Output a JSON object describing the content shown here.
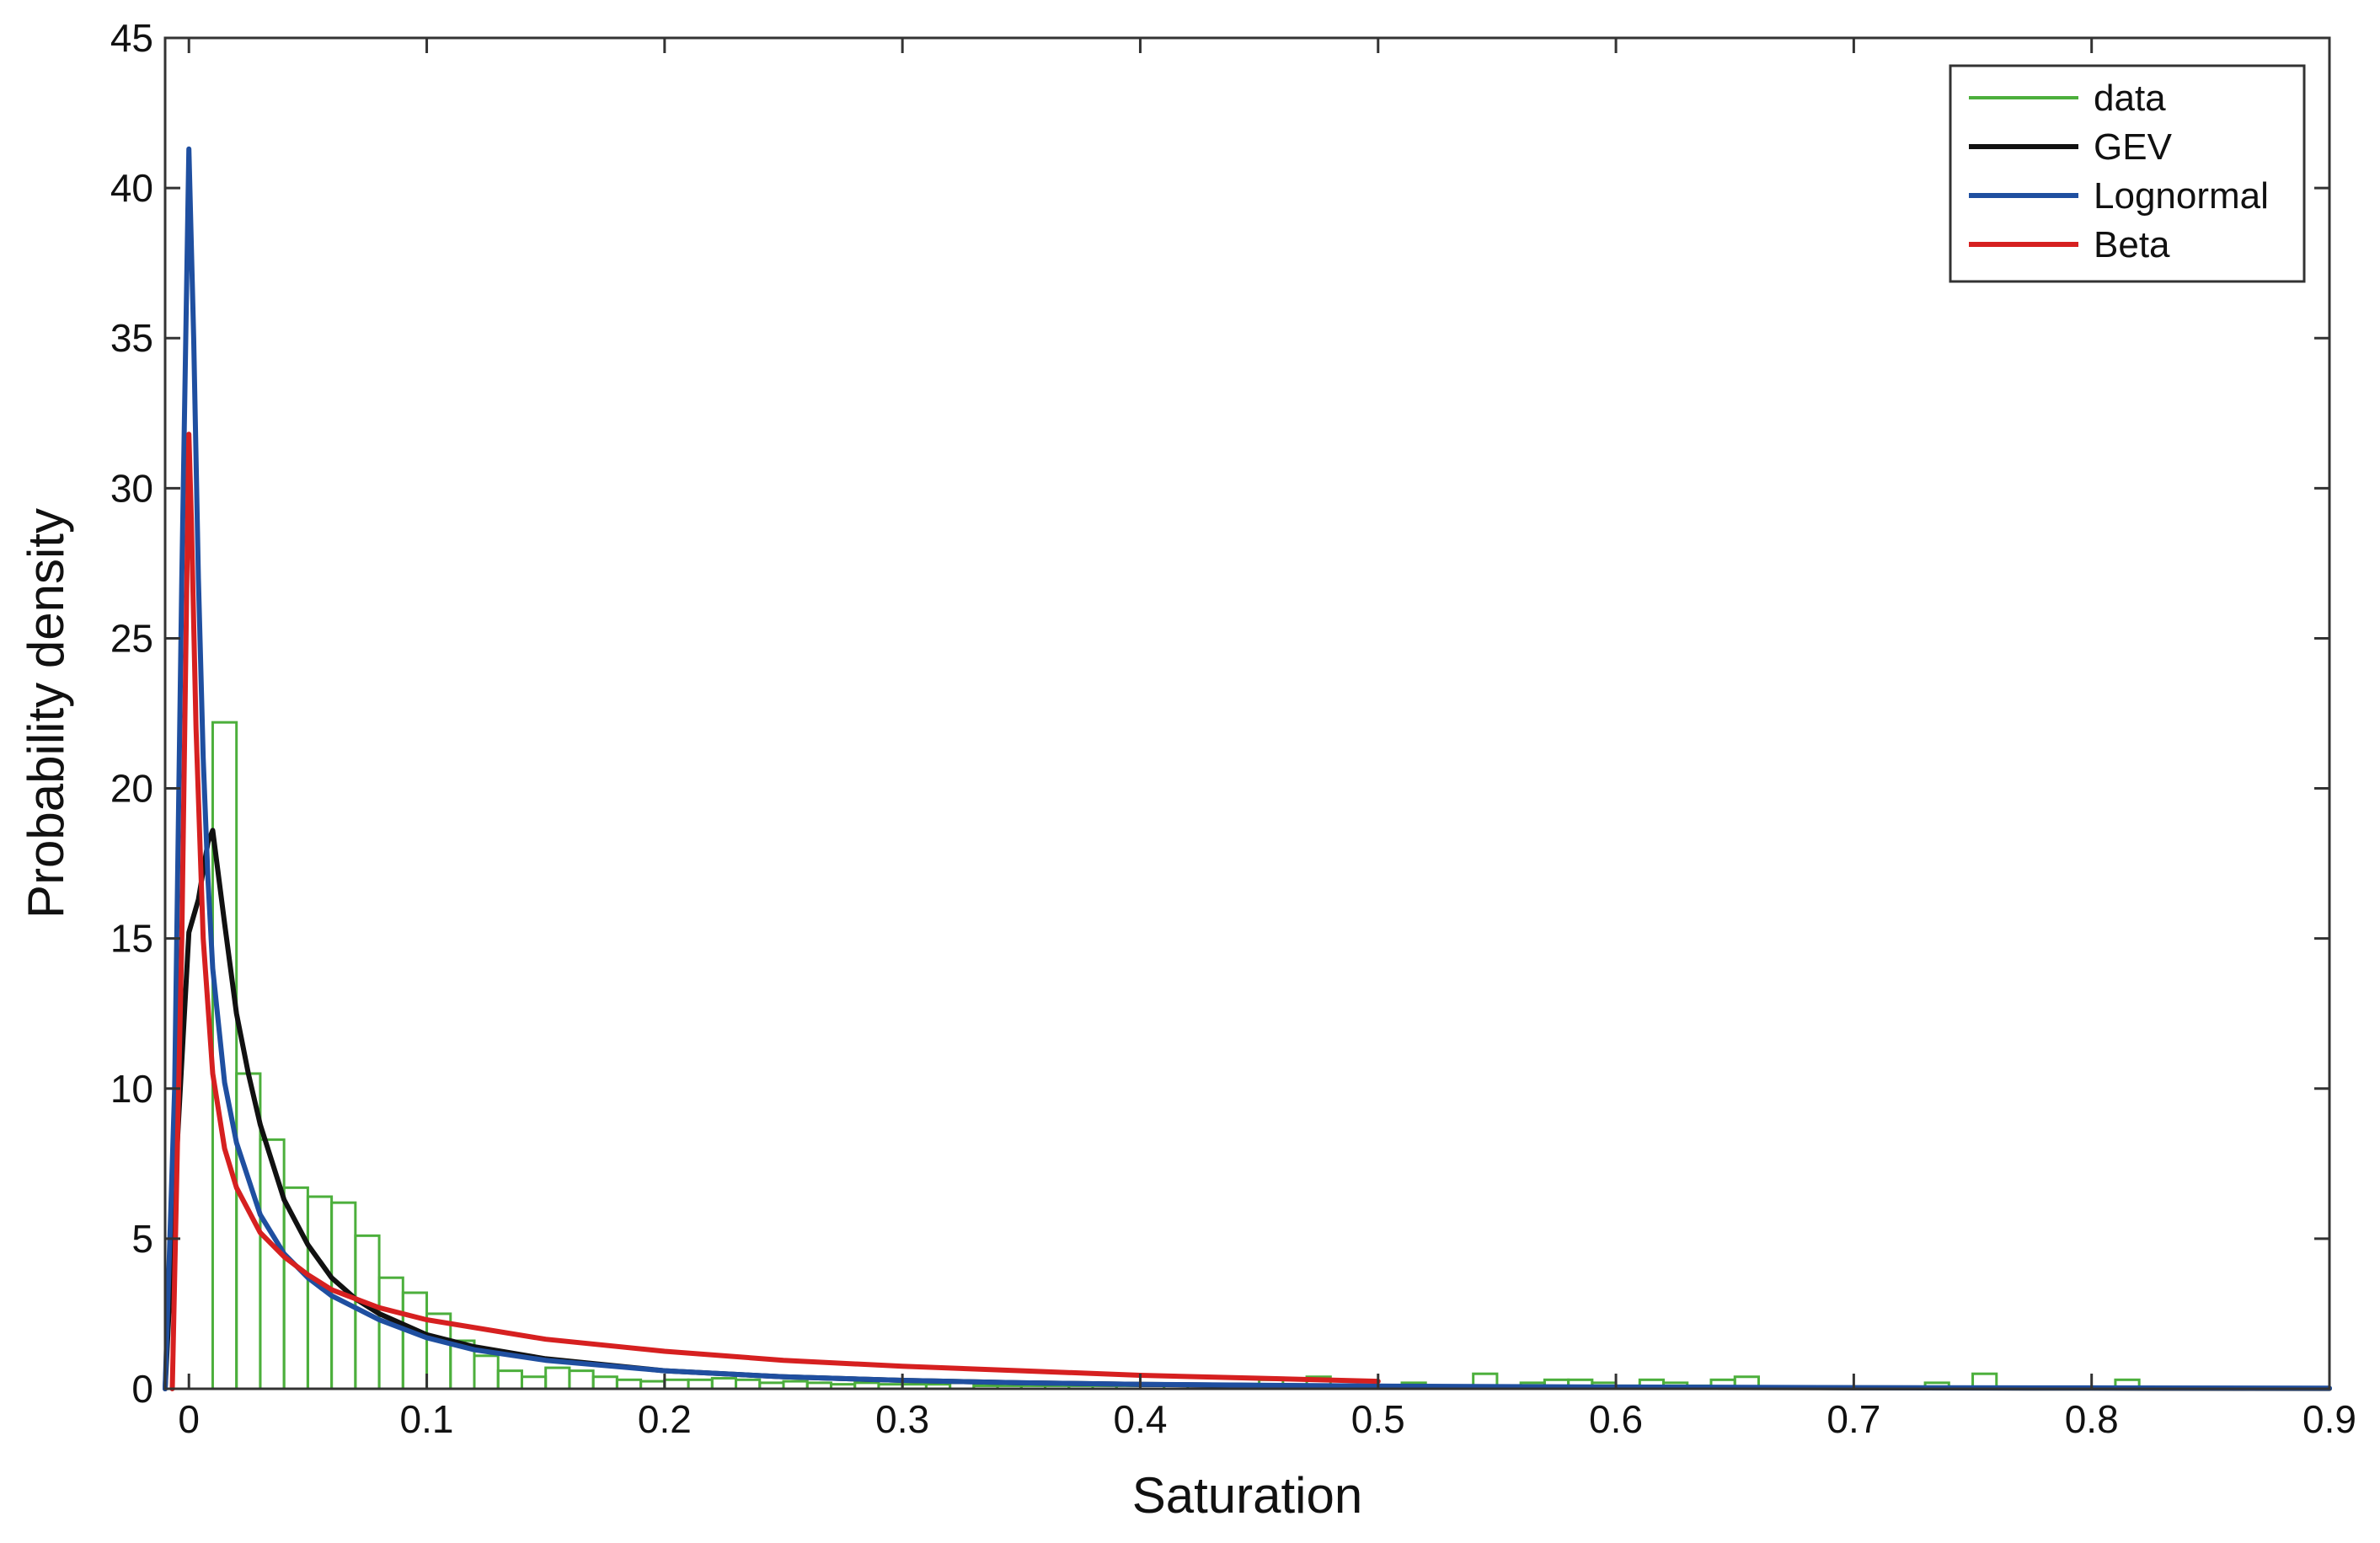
{
  "chart_data": {
    "type": "line",
    "xlabel": "Saturation",
    "ylabel": "Probability density",
    "xlim": [
      -0.01,
      0.9
    ],
    "ylim": [
      0,
      45
    ],
    "xticks": [
      0,
      0.1,
      0.2,
      0.3,
      0.4,
      0.5,
      0.6,
      0.7,
      0.8,
      0.9
    ],
    "xtick_labels": [
      "0",
      "0.1",
      "0.2",
      "0.3",
      "0.4",
      "0.5",
      "0.6",
      "0.7",
      "0.8",
      "0.9"
    ],
    "yticks": [
      0,
      5,
      10,
      15,
      20,
      25,
      30,
      35,
      40,
      45
    ],
    "ytick_labels": [
      "0",
      "5",
      "10",
      "15",
      "20",
      "25",
      "30",
      "35",
      "40",
      "45"
    ],
    "grid": false,
    "legend_position": "top-right",
    "histogram": {
      "name": "data",
      "color": "#4caf3c",
      "bin_width": 0.01,
      "bin_start": 0,
      "values": [
        0,
        22.2,
        10.5,
        8.3,
        6.7,
        6.4,
        6.2,
        5.1,
        3.7,
        3.2,
        2.5,
        1.6,
        1.1,
        0.6,
        0.4,
        0.7,
        0.6,
        0.4,
        0.3,
        0.25,
        0.3,
        0.3,
        0.35,
        0.3,
        0.2,
        0.25,
        0.2,
        0.15,
        0.2,
        0.15,
        0.15,
        0.15,
        0.2,
        0.1,
        0.1,
        0.1,
        0.1,
        0.1,
        0.1,
        0.1,
        0.1,
        0.1,
        0.1,
        0.1,
        0.1,
        0.3,
        0.1,
        0.4,
        0.1,
        0.1,
        0.1,
        0.2,
        0.1,
        0.1,
        0.5,
        0.1,
        0.2,
        0.3,
        0.3,
        0.2,
        0.1,
        0.3,
        0.2,
        0.1,
        0.3,
        0.4,
        0,
        0,
        0,
        0,
        0,
        0,
        0,
        0.2,
        0,
        0.5,
        0,
        0,
        0,
        0,
        0,
        0.3,
        0,
        0,
        0,
        0,
        0,
        0,
        0,
        0
      ]
    },
    "series": [
      {
        "name": "GEV",
        "color": "#111111",
        "x": [
          -0.01,
          -0.005,
          0,
          0.004,
          0.008,
          0.01,
          0.015,
          0.02,
          0.025,
          0.03,
          0.04,
          0.05,
          0.06,
          0.07,
          0.08,
          0.1,
          0.12,
          0.15,
          0.2,
          0.25,
          0.3,
          0.35,
          0.4,
          0.5,
          0.6,
          0.7,
          0.8,
          0.9
        ],
        "y": [
          0,
          8,
          15.2,
          16.3,
          18.2,
          18.6,
          15.5,
          12.5,
          10.5,
          8.8,
          6.3,
          4.8,
          3.7,
          3.0,
          2.5,
          1.8,
          1.4,
          1.0,
          0.6,
          0.4,
          0.28,
          0.2,
          0.15,
          0.08,
          0.05,
          0.03,
          0.02,
          0.01
        ]
      },
      {
        "name": "Lognormal",
        "color": "#1f4fa0",
        "x": [
          -0.01,
          -0.006,
          -0.003,
          0,
          0.002,
          0.004,
          0.006,
          0.008,
          0.01,
          0.015,
          0.02,
          0.03,
          0.04,
          0.05,
          0.06,
          0.08,
          0.1,
          0.12,
          0.15,
          0.2,
          0.25,
          0.3,
          0.35,
          0.4,
          0.5,
          0.6,
          0.7,
          0.8,
          0.9
        ],
        "y": [
          0,
          10,
          27,
          41.3,
          35,
          27,
          21,
          17,
          14,
          10.2,
          8.2,
          5.8,
          4.5,
          3.7,
          3.1,
          2.3,
          1.7,
          1.3,
          0.95,
          0.6,
          0.4,
          0.28,
          0.2,
          0.15,
          0.09,
          0.06,
          0.04,
          0.03,
          0.02
        ]
      },
      {
        "name": "Beta",
        "color": "#d62020",
        "x": [
          -0.007,
          -0.003,
          0,
          0.001,
          0.003,
          0.006,
          0.01,
          0.015,
          0.02,
          0.03,
          0.04,
          0.05,
          0.06,
          0.08,
          0.1,
          0.15,
          0.2,
          0.25,
          0.3,
          0.35,
          0.4,
          0.45,
          0.5
        ],
        "y": [
          0,
          15,
          31.8,
          29,
          22,
          15,
          10.5,
          8,
          6.7,
          5.2,
          4.4,
          3.8,
          3.3,
          2.7,
          2.3,
          1.65,
          1.25,
          0.95,
          0.75,
          0.6,
          0.45,
          0.35,
          0.25
        ]
      }
    ]
  }
}
